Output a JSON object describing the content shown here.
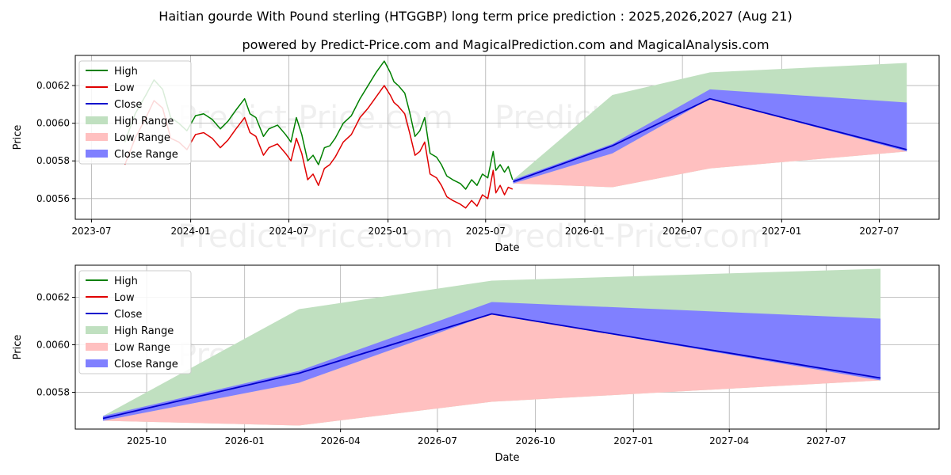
{
  "page": {
    "title": "Haitian gourde With Pound sterling (HTGGBP) long term price prediction : 2025,2026,2027 (Aug 21)",
    "subtitle": "powered by Predict-Price.com and MagicalPrediction.com and MagicalAnalysis.com",
    "watermark": "Predict-Price.com"
  },
  "colors": {
    "high": "#008000",
    "low": "#e00000",
    "close": "#0000cc",
    "high_range": "#c0e0c0",
    "low_range": "#ffc0c0",
    "close_range": "#8080ff",
    "grid": "#b0b0b0"
  },
  "legend": {
    "high": "High",
    "low": "Low",
    "close": "Close",
    "high_range": "High Range",
    "low_range": "Low Range",
    "close_range": "Close Range"
  },
  "chart_data": [
    {
      "type": "line",
      "xlabel": "Date",
      "ylabel": "Price",
      "x_range": [
        "2023-06-01",
        "2027-10-20"
      ],
      "ylim": [
        0.00549,
        0.00636
      ],
      "x_ticks": [
        "2023-07",
        "2024-01",
        "2024-07",
        "2025-01",
        "2025-07",
        "2026-01",
        "2026-07",
        "2027-01",
        "2027-07"
      ],
      "x_tick_dates": [
        "2023-07-01",
        "2024-01-01",
        "2024-07-01",
        "2025-01-01",
        "2025-07-01",
        "2026-01-01",
        "2026-07-01",
        "2027-01-01",
        "2027-07-01"
      ],
      "y_ticks": [
        "0.0056",
        "0.0058",
        "0.0060",
        "0.0062"
      ],
      "y_tick_values": [
        0.0056,
        0.0058,
        0.006,
        0.0062
      ],
      "grid": true,
      "legend_position": "upper-left",
      "history": {
        "dates": [
          "2023-09-01",
          "2023-09-20",
          "2023-10-10",
          "2023-10-25",
          "2023-11-10",
          "2023-11-25",
          "2023-12-10",
          "2023-12-25",
          "2024-01-10",
          "2024-01-25",
          "2024-02-10",
          "2024-02-25",
          "2024-03-10",
          "2024-03-25",
          "2024-04-10",
          "2024-04-20",
          "2024-05-01",
          "2024-05-15",
          "2024-05-25",
          "2024-06-10",
          "2024-06-25",
          "2024-07-05",
          "2024-07-15",
          "2024-07-25",
          "2024-08-05",
          "2024-08-15",
          "2024-08-25",
          "2024-09-05",
          "2024-09-15",
          "2024-09-25",
          "2024-10-10",
          "2024-10-25",
          "2024-11-10",
          "2024-11-25",
          "2024-12-10",
          "2024-12-25",
          "2025-01-05",
          "2025-01-12",
          "2025-01-20",
          "2025-02-01",
          "2025-02-10",
          "2025-02-20",
          "2025-03-01",
          "2025-03-10",
          "2025-03-20",
          "2025-04-01",
          "2025-04-10",
          "2025-04-20",
          "2025-05-01",
          "2025-05-15",
          "2025-05-25",
          "2025-06-05",
          "2025-06-15",
          "2025-06-25",
          "2025-07-05",
          "2025-07-15",
          "2025-07-20",
          "2025-07-28",
          "2025-08-05",
          "2025-08-12",
          "2025-08-20"
        ],
        "high": [
          0.0059,
          0.00605,
          0.00615,
          0.00623,
          0.00618,
          0.00603,
          0.006,
          0.00596,
          0.00604,
          0.00605,
          0.00602,
          0.00597,
          0.00601,
          0.00607,
          0.00613,
          0.00605,
          0.00603,
          0.00593,
          0.00597,
          0.00599,
          0.00594,
          0.0059,
          0.00603,
          0.00594,
          0.0058,
          0.00583,
          0.00578,
          0.00587,
          0.00588,
          0.00592,
          0.006,
          0.00604,
          0.00613,
          0.0062,
          0.00627,
          0.00633,
          0.00627,
          0.00622,
          0.0062,
          0.00616,
          0.00606,
          0.00593,
          0.00596,
          0.00603,
          0.00584,
          0.00582,
          0.00578,
          0.00572,
          0.0057,
          0.00568,
          0.00565,
          0.0057,
          0.00567,
          0.00573,
          0.00571,
          0.00585,
          0.00575,
          0.00578,
          0.00574,
          0.00577,
          0.0057
        ],
        "low": [
          0.00578,
          0.00592,
          0.00603,
          0.00612,
          0.00608,
          0.00592,
          0.0059,
          0.00586,
          0.00594,
          0.00595,
          0.00592,
          0.00587,
          0.00591,
          0.00597,
          0.00603,
          0.00595,
          0.00593,
          0.00583,
          0.00587,
          0.00589,
          0.00584,
          0.0058,
          0.00592,
          0.00584,
          0.0057,
          0.00573,
          0.00567,
          0.00576,
          0.00578,
          0.00582,
          0.0059,
          0.00594,
          0.00603,
          0.00608,
          0.00614,
          0.0062,
          0.00615,
          0.00611,
          0.00609,
          0.00605,
          0.00595,
          0.00583,
          0.00585,
          0.0059,
          0.00573,
          0.00571,
          0.00567,
          0.00561,
          0.00559,
          0.00557,
          0.00555,
          0.00559,
          0.00556,
          0.00562,
          0.0056,
          0.00575,
          0.00563,
          0.00567,
          0.00562,
          0.00566,
          0.00565
        ]
      },
      "forecast": {
        "dates": [
          "2025-08-21",
          "2026-02-21",
          "2026-08-21",
          "2027-08-21"
        ],
        "high_range_upper": [
          0.0057,
          0.00615,
          0.00627,
          0.00632
        ],
        "low_range_lower": [
          0.00568,
          0.00566,
          0.00576,
          0.00585
        ],
        "close_range_upper": [
          0.0057,
          0.00589,
          0.00618,
          0.00611
        ],
        "close_range_lower": [
          0.00568,
          0.00584,
          0.00613,
          0.00585
        ],
        "close": [
          0.00569,
          0.00588,
          0.00613,
          0.00586
        ]
      }
    },
    {
      "type": "line",
      "xlabel": "Date",
      "ylabel": "Price",
      "x_range": [
        "2025-07-26",
        "2027-10-15"
      ],
      "ylim": [
        0.005645,
        0.006335
      ],
      "x_ticks": [
        "2025-10",
        "2026-01",
        "2026-04",
        "2026-07",
        "2026-10",
        "2027-01",
        "2027-04",
        "2027-07"
      ],
      "x_tick_dates": [
        "2025-10-01",
        "2026-01-01",
        "2026-04-01",
        "2026-07-01",
        "2026-10-01",
        "2027-01-01",
        "2027-04-01",
        "2027-07-01"
      ],
      "y_ticks": [
        "0.0058",
        "0.0060",
        "0.0062"
      ],
      "y_tick_values": [
        0.0058,
        0.006,
        0.0062
      ],
      "grid": true,
      "legend_position": "upper-left",
      "forecast": {
        "dates": [
          "2025-08-21",
          "2026-02-21",
          "2026-08-21",
          "2027-08-21"
        ],
        "high_range_upper": [
          0.0057,
          0.00615,
          0.00627,
          0.00632
        ],
        "low_range_lower": [
          0.00568,
          0.00566,
          0.00576,
          0.00585
        ],
        "close_range_upper": [
          0.0057,
          0.00589,
          0.00618,
          0.00611
        ],
        "close_range_lower": [
          0.00568,
          0.00584,
          0.00613,
          0.00585
        ],
        "close": [
          0.00569,
          0.00588,
          0.00613,
          0.00586
        ]
      }
    }
  ]
}
